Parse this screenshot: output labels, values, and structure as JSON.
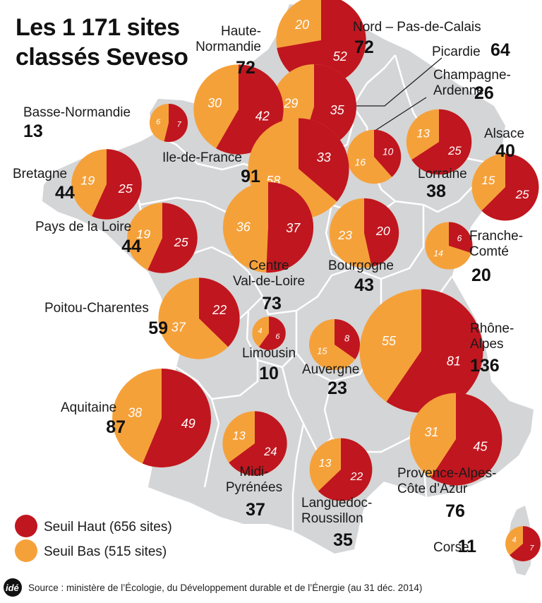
{
  "title": [
    "Les 1 171 sites",
    "classés Seveso"
  ],
  "colors": {
    "haut": "#c0161f",
    "bas": "#f5a13a",
    "map": "#d4d5d7",
    "border": "#ffffff"
  },
  "legend": [
    {
      "key": "haut",
      "label": "Seuil Haut (656 sites)"
    },
    {
      "key": "bas",
      "label": "Seuil Bas (515 sites)"
    }
  ],
  "source": "Source : ministère de l’Écologie, du Développement durable et de l’Énergie (au 31 déc. 2014)",
  "logo": "idé",
  "chart_data": {
    "type": "pie",
    "title": "Les 1 171 sites classés Seveso",
    "series_names": [
      "Seuil Haut",
      "Seuil Bas"
    ],
    "regions": [
      {
        "name": "Nord – Pas-de-Calais",
        "total": 72,
        "haut": 52,
        "bas": 20
      },
      {
        "name": "Picardie",
        "total": 64,
        "haut": 35,
        "bas": 29
      },
      {
        "name": "Haute-Normandie",
        "total": 72,
        "haut": 42,
        "bas": 30
      },
      {
        "name": "Champagne-Ardenne",
        "total": 26,
        "haut": 10,
        "bas": 16
      },
      {
        "name": "Basse-Normandie",
        "total": 13,
        "haut": 7,
        "bas": 6
      },
      {
        "name": "Ile-de-France",
        "total": 91,
        "haut": 33,
        "bas": 58
      },
      {
        "name": "Lorraine",
        "total": 38,
        "haut": 25,
        "bas": 13
      },
      {
        "name": "Alsace",
        "total": 40,
        "haut": 25,
        "bas": 15
      },
      {
        "name": "Bretagne",
        "total": 44,
        "haut": 25,
        "bas": 19
      },
      {
        "name": "Pays de la Loire",
        "total": 44,
        "haut": 25,
        "bas": 19
      },
      {
        "name": "Centre Val-de-Loire",
        "total": 73,
        "haut": 37,
        "bas": 36
      },
      {
        "name": "Bourgogne",
        "total": 43,
        "haut": 20,
        "bas": 23
      },
      {
        "name": "Franche-Comté",
        "total": 20,
        "haut": 6,
        "bas": 14
      },
      {
        "name": "Poitou-Charentes",
        "total": 59,
        "haut": 22,
        "bas": 37
      },
      {
        "name": "Limousin",
        "total": 10,
        "haut": 6,
        "bas": 4
      },
      {
        "name": "Auvergne",
        "total": 23,
        "haut": 8,
        "bas": 15
      },
      {
        "name": "Rhône-Alpes",
        "total": 136,
        "haut": 81,
        "bas": 55
      },
      {
        "name": "Aquitaine",
        "total": 87,
        "haut": 49,
        "bas": 38
      },
      {
        "name": "Midi-Pyrénées",
        "total": 37,
        "haut": 24,
        "bas": 13
      },
      {
        "name": "Languedoc-Roussillon",
        "total": 35,
        "haut": 22,
        "bas": 13
      },
      {
        "name": "Provence-Alpes-Côte d’Azur",
        "total": 76,
        "haut": 45,
        "bas": 31
      },
      {
        "name": "Corse",
        "total": 11,
        "haut": 7,
        "bas": 4
      }
    ]
  },
  "labels": [
    {
      "lines": [
        "Nord – Pas-de-Calais"
      ],
      "total": "72"
    },
    {
      "lines": [
        "Picardie"
      ],
      "total": "64"
    },
    {
      "lines": [
        "Haute-",
        "Normandie"
      ],
      "total": "72"
    },
    {
      "lines": [
        "Champagne-",
        "Ardenne"
      ],
      "total": "26"
    },
    {
      "lines": [
        "Basse-Normandie"
      ],
      "total": "13"
    },
    {
      "lines": [
        "Ile-de-France"
      ],
      "total": "91"
    },
    {
      "lines": [
        "Lorraine"
      ],
      "total": "38"
    },
    {
      "lines": [
        "Alsace"
      ],
      "total": "40"
    },
    {
      "lines": [
        "Bretagne"
      ],
      "total": "44"
    },
    {
      "lines": [
        "Pays de la Loire"
      ],
      "total": "44"
    },
    {
      "lines": [
        "Centre",
        "Val-de-Loire"
      ],
      "total": "73"
    },
    {
      "lines": [
        "Bourgogne"
      ],
      "total": "43"
    },
    {
      "lines": [
        "Franche-",
        "Comté"
      ],
      "total": "20"
    },
    {
      "lines": [
        "Poitou-Charentes"
      ],
      "total": "59"
    },
    {
      "lines": [
        "Limousin"
      ],
      "total": "10"
    },
    {
      "lines": [
        "Auvergne"
      ],
      "total": "23"
    },
    {
      "lines": [
        "Rhône-",
        "Alpes"
      ],
      "total": "136"
    },
    {
      "lines": [
        "Aquitaine"
      ],
      "total": "87"
    },
    {
      "lines": [
        "Midi-",
        "Pyrénées"
      ],
      "total": "37"
    },
    {
      "lines": [
        "Languedoc-",
        "Roussillon"
      ],
      "total": "35"
    },
    {
      "lines": [
        "Provence-Alpes-",
        "Côte d’Azur"
      ],
      "total": "76"
    },
    {
      "lines": [
        "Corse"
      ],
      "total": "11"
    }
  ]
}
